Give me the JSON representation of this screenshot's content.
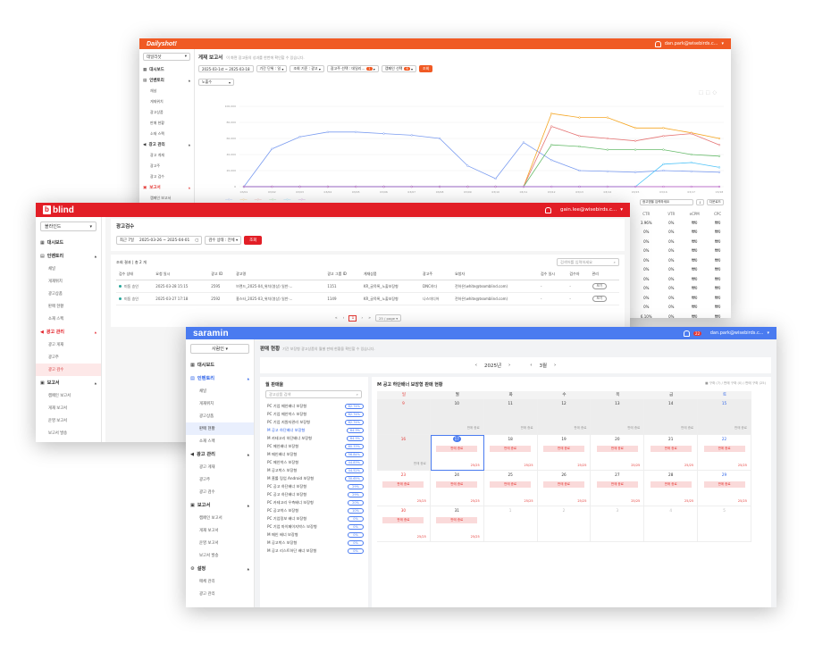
{
  "dailyshot": {
    "logo": "Dailyshot!",
    "user": "dan.park@wisebirds.c...",
    "sidebar": {
      "select": "데일리샷",
      "items": [
        {
          "type": "sec",
          "label": "대시보드",
          "icon": "dashboard-icon"
        },
        {
          "type": "sec",
          "label": "인벤토리",
          "icon": "inventory-icon",
          "chev": "▲"
        },
        {
          "type": "item",
          "label": "채널"
        },
        {
          "type": "item",
          "label": "게재위치"
        },
        {
          "type": "item",
          "label": "광고상품"
        },
        {
          "type": "item",
          "label": "판매 현황"
        },
        {
          "type": "item",
          "label": "소재 스펙"
        },
        {
          "type": "sec",
          "label": "광고 관리",
          "icon": "megaphone-icon",
          "chev": "▲"
        },
        {
          "type": "item",
          "label": "광고 게재"
        },
        {
          "type": "item",
          "label": "광고주"
        },
        {
          "type": "item",
          "label": "광고 검수"
        },
        {
          "type": "sec",
          "label": "보고서",
          "icon": "report-icon",
          "chev": "▲",
          "active": true
        },
        {
          "type": "item",
          "label": "캠페인 보고서"
        }
      ]
    },
    "title": "게재 보고서",
    "subtitle": "이 화면 광고들의 성과를 한번에 확인할 수 있습니다.",
    "filters": {
      "date": "2025-03-1st ~ 2025-03-18",
      "unit": "기간 단위 : 일",
      "basis": "조회 기준 : 광고",
      "campaign": "광고주 선택 : 데일리...",
      "campaign_count": "1",
      "metric": "캠페인 선택",
      "metric_count": "6",
      "search": "조회"
    },
    "metric_select": "노출수",
    "right_table": {
      "search_placeholder": "광고명을 입력하세요",
      "download": "다운로드",
      "headers": [
        "CTR",
        "VTR",
        "eCPM",
        "CPC"
      ],
      "rows": [
        [
          "3.96%",
          "0%",
          "₩0",
          "₩0"
        ],
        [
          "0%",
          "0%",
          "₩0",
          "₩0"
        ],
        [
          "0%",
          "0%",
          "₩0",
          "₩0"
        ],
        [
          "0%",
          "0%",
          "₩0",
          "₩0"
        ],
        [
          "0%",
          "0%",
          "₩0",
          "₩0"
        ],
        [
          "0%",
          "0%",
          "₩0",
          "₩0"
        ],
        [
          "0%",
          "0%",
          "₩0",
          "₩0"
        ],
        [
          "0%",
          "0%",
          "₩0",
          "₩0"
        ],
        [
          "0%",
          "0%",
          "₩0",
          "₩0"
        ],
        [
          "0%",
          "0%",
          "₩0",
          "₩0"
        ],
        [
          "6.10%",
          "0%",
          "₩0",
          "₩0"
        ],
        [
          "0.9%",
          "0%",
          "₩0",
          "₩0"
        ],
        [
          "0%",
          "0%",
          "₩0",
          "₩0"
        ]
      ]
    }
  },
  "chart_data": {
    "type": "line",
    "x": [
      "03/01",
      "03/02",
      "03/03",
      "03/04",
      "03/05",
      "03/06",
      "03/07",
      "03/08",
      "03/09",
      "03/10",
      "03/11",
      "03/12",
      "03/13",
      "03/14",
      "03/15",
      "03/16",
      "03/17",
      "03/18"
    ],
    "ylim": [
      0,
      100000
    ],
    "yticks": [
      "100,000",
      "80,000",
      "60,000",
      "40,000",
      "20,000",
      "0"
    ],
    "series": [
      {
        "color": "#7b9cf0",
        "values": [
          0,
          47000,
          62000,
          68000,
          68000,
          66000,
          64000,
          60000,
          26000,
          10000,
          55000,
          33000,
          20000,
          19000,
          18000,
          20000,
          19000,
          18000
        ]
      },
      {
        "color": "#f5a623",
        "values": [
          0,
          0,
          0,
          0,
          0,
          0,
          0,
          0,
          0,
          0,
          0,
          91000,
          86000,
          86000,
          73000,
          73000,
          67000,
          60000
        ]
      },
      {
        "color": "#e57373",
        "values": [
          0,
          0,
          0,
          0,
          0,
          0,
          0,
          0,
          0,
          0,
          0,
          75000,
          63000,
          60000,
          57000,
          63000,
          66000,
          52000
        ]
      },
      {
        "color": "#66bb6a",
        "values": [
          0,
          0,
          0,
          0,
          0,
          0,
          0,
          0,
          0,
          0,
          0,
          52000,
          50000,
          46000,
          46000,
          46000,
          40000,
          38000
        ]
      },
      {
        "color": "#4fc3f7",
        "values": [
          0,
          0,
          0,
          0,
          0,
          0,
          0,
          0,
          0,
          0,
          0,
          0,
          0,
          0,
          0,
          28000,
          30000,
          24000
        ]
      },
      {
        "color": "#ab47bc",
        "values": [
          0,
          0,
          0,
          0,
          0,
          0,
          0,
          0,
          0,
          0,
          0,
          0,
          0,
          0,
          0,
          0,
          0,
          0
        ]
      }
    ]
  },
  "blind": {
    "logo": "blind",
    "user": "gain.lee@wisebirds.c...",
    "sidebar": {
      "select": "블라인드",
      "items": [
        {
          "type": "sec",
          "label": "대시보드",
          "icon": "dashboard-icon"
        },
        {
          "type": "sec",
          "label": "인벤토리",
          "icon": "inventory-icon",
          "chev": "▲"
        },
        {
          "type": "item",
          "label": "채널"
        },
        {
          "type": "item",
          "label": "게재위치"
        },
        {
          "type": "item",
          "label": "광고상품"
        },
        {
          "type": "item",
          "label": "판매 현황"
        },
        {
          "type": "item",
          "label": "소재 스펙"
        },
        {
          "type": "sec",
          "label": "광고 관리",
          "icon": "megaphone-icon",
          "chev": "▲",
          "red": true
        },
        {
          "type": "item",
          "label": "광고 게재"
        },
        {
          "type": "item",
          "label": "광고주"
        },
        {
          "type": "item",
          "label": "광고 검수",
          "active": true
        },
        {
          "type": "sec",
          "label": "보고서",
          "icon": "report-icon",
          "chev": "▲"
        },
        {
          "type": "item",
          "label": "캠페인 보고서"
        },
        {
          "type": "item",
          "label": "게재 보고서"
        },
        {
          "type": "item",
          "label": "운영 보고서"
        },
        {
          "type": "item",
          "label": "보고서 발송"
        }
      ]
    },
    "title": "광고검수",
    "filters": {
      "period": "최근 7일",
      "date": "2025-03-26 ~ 2025-04-01",
      "status": "검수 상태 : 전체",
      "search": "조회"
    },
    "count_label": "조회 결과 | 총 2 개",
    "search_placeholder": "검색어를 입력하세요",
    "headers": [
      "검수 상태",
      "요청 일시",
      "광고 ID",
      "광고명",
      "광고 그룹 ID",
      "게재상품",
      "광고주",
      "요청자",
      "검수 일시",
      "검수자",
      "관리"
    ],
    "rows": [
      {
        "status": "미동 승인",
        "date": "2025-03-28 15:15",
        "id": "2595",
        "name": "브랜드_2025-04_위치(영상) 일반·...",
        "group": "1151",
        "product": "KR_글목록_노출보장형",
        "adv": "DNC하다",
        "req": "전하은(white@teamblind.com)",
        "rdate": "-",
        "reviewer": "-",
        "manage": "보기"
      },
      {
        "status": "미동 승인",
        "date": "2025-03-27 17:18",
        "id": "2592",
        "name": "홍스타_2025-03_위치(영상) 일반·...",
        "group": "1149",
        "product": "KR_글목록_노출보장형",
        "adv": "나스미디어",
        "req": "전하은(white@teamblind.com)",
        "rdate": "-",
        "reviewer": "-",
        "manage": "보기"
      }
    ],
    "pagination": {
      "prev2": "«",
      "prev": "‹",
      "current": "1",
      "next": "›",
      "next2": "»",
      "per_page": "25 / page"
    }
  },
  "saramin": {
    "logo": "saramin",
    "user": "dan.park@wisebirds.c...",
    "badge": "22",
    "sidebar": {
      "select": "사람인",
      "items": [
        {
          "type": "sec",
          "label": "대시보드",
          "icon": "dashboard-icon"
        },
        {
          "type": "sec",
          "label": "인벤토리",
          "icon": "inventory-icon",
          "chev": "▲",
          "blue": true
        },
        {
          "type": "item",
          "label": "채널"
        },
        {
          "type": "item",
          "label": "게재위치"
        },
        {
          "type": "item",
          "label": "광고상품"
        },
        {
          "type": "item",
          "label": "판매 현황",
          "active": true
        },
        {
          "type": "item",
          "label": "소재 스펙"
        },
        {
          "type": "sec",
          "label": "광고 관리",
          "icon": "megaphone-icon",
          "chev": "▲"
        },
        {
          "type": "item",
          "label": "광고 게재"
        },
        {
          "type": "item",
          "label": "광고주"
        },
        {
          "type": "item",
          "label": "광고 검수"
        },
        {
          "type": "sec",
          "label": "보고서",
          "icon": "report-icon",
          "chev": "▲"
        },
        {
          "type": "item",
          "label": "캠페인 보고서"
        },
        {
          "type": "item",
          "label": "게재 보고서"
        },
        {
          "type": "item",
          "label": "운영 보고서"
        },
        {
          "type": "item",
          "label": "보고서 발송"
        },
        {
          "type": "sec",
          "label": "설정",
          "icon": "gear-icon",
          "chev": "▲"
        },
        {
          "type": "item",
          "label": "매체 관리"
        },
        {
          "type": "item",
          "label": "광고 관리"
        }
      ]
    },
    "title": "판매 현황",
    "subtitle": "기간 보장형 광고상품의 월별 판매 현황을 확인할 수 있습니다.",
    "year": "2025년",
    "month": "3월",
    "left_title": "월 판매율",
    "left_search": "광고상품 검색",
    "products": [
      {
        "name": "PC 기업 메인배너 보장형",
        "rate": "82.74%"
      },
      {
        "name": "PC 기업 메인박스 보장형",
        "rate": "82.74%"
      },
      {
        "name": "PC 기업 지원자관리 보장형",
        "rate": "82.74%"
      },
      {
        "name": "M 공고 하단배너 보장형",
        "rate": "64.5%",
        "sel": true
      },
      {
        "name": "M 카테고리 하단배너 보장형",
        "rate": "64.5%"
      },
      {
        "name": "PC 메인배너 보장형",
        "rate": "60.33%"
      },
      {
        "name": "M 메인배너 보장형",
        "rate": "56.84%"
      },
      {
        "name": "PC 메인박스 보장형",
        "rate": "44.83%"
      },
      {
        "name": "M 공고박스 보장형",
        "rate": "44.52%"
      },
      {
        "name": "M 홈롤 링업 Android 보장형",
        "rate": "30.65%"
      },
      {
        "name": "PC 공고 하단배너 보장형",
        "rate": "29%"
      },
      {
        "name": "PC 공고 하단배너 보장형",
        "rate": "29%"
      },
      {
        "name": "PC 카테고리 우측배너 보장형",
        "rate": "20%"
      },
      {
        "name": "PC 공고박스 보장형",
        "rate": "10%"
      },
      {
        "name": "PC 기업정보 배너 보장형",
        "rate": "0%"
      },
      {
        "name": "PC 기업 마이페이지박스 보장형",
        "rate": "0%"
      },
      {
        "name": "M 메인 배너 보장형",
        "rate": "0%"
      },
      {
        "name": "M 공고박스 보장형",
        "rate": "0%"
      },
      {
        "name": "M 공고 리스트하단 배너 보장형",
        "rate": "0%"
      }
    ],
    "cal_title": "M 공고 하단배너 보장형 판매 현황",
    "cal_legend": "■ 구좌 (7) / 판매 구좌 (0) / 판매 구좌 (25)",
    "weekdays": [
      "일",
      "월",
      "화",
      "수",
      "목",
      "금",
      "토"
    ],
    "weeks": [
      [
        {
          "d": "9",
          "g": 1,
          "s": ""
        },
        {
          "d": "10",
          "g": 1,
          "s": "판매 종료"
        },
        {
          "d": "11",
          "g": 1,
          "s": "판매 종료"
        },
        {
          "d": "12",
          "g": 1,
          "s": "판매 종료"
        },
        {
          "d": "13",
          "g": 1,
          "s": "판매 종료"
        },
        {
          "d": "14",
          "g": 1,
          "s": "판매 종료"
        },
        {
          "d": "15",
          "g": 1,
          "s": "판매 종료"
        }
      ],
      [
        {
          "d": "16",
          "g": 1,
          "s": "판매 종료"
        },
        {
          "d": "17",
          "today": 1,
          "b": "판매 종료",
          "c": "25/25"
        },
        {
          "d": "18",
          "b": "판매 종료",
          "c": "25/25"
        },
        {
          "d": "19",
          "b": "판매 종료",
          "c": "25/25"
        },
        {
          "d": "20",
          "b": "판매 종료",
          "c": "25/25"
        },
        {
          "d": "21",
          "b": "판매 종료",
          "c": "25/25"
        },
        {
          "d": "22",
          "b": "판매 종료",
          "c": "25/25"
        }
      ],
      [
        {
          "d": "23",
          "b": "판매 종료",
          "c": "25/25"
        },
        {
          "d": "24",
          "b": "판매 종료",
          "c": "25/25"
        },
        {
          "d": "25",
          "b": "판매 종료",
          "c": "25/25"
        },
        {
          "d": "26",
          "b": "판매 종료",
          "c": "25/25"
        },
        {
          "d": "27",
          "b": "판매 종료",
          "c": "25/25"
        },
        {
          "d": "28",
          "b": "판매 종료",
          "c": "25/25"
        },
        {
          "d": "29",
          "b": "판매 종료",
          "c": "25/25"
        }
      ],
      [
        {
          "d": "30",
          "b": "판매 종료",
          "c": "25/25"
        },
        {
          "d": "31",
          "b": "판매 종료",
          "c": "25/25"
        },
        {
          "d": "1",
          "o": 1
        },
        {
          "d": "2",
          "o": 1
        },
        {
          "d": "3",
          "o": 1
        },
        {
          "d": "4",
          "o": 1
        },
        {
          "d": "5",
          "o": 1
        }
      ]
    ]
  }
}
